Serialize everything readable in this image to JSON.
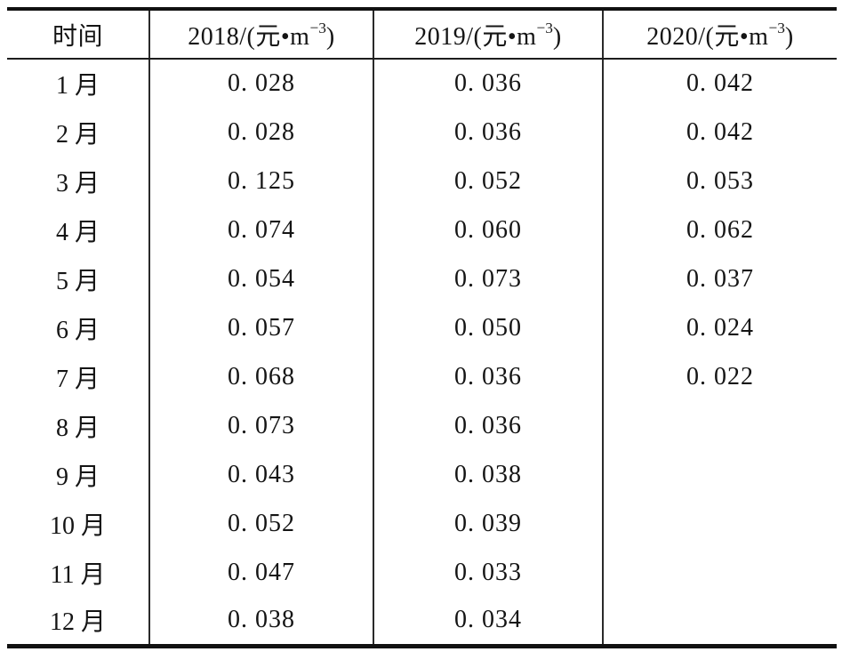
{
  "table": {
    "columns": [
      {
        "label": "时间"
      },
      {
        "prefix": "2018/(元•m",
        "sup": "−3",
        "suffix": ")"
      },
      {
        "prefix": "2019/(元•m",
        "sup": "−3",
        "suffix": ")"
      },
      {
        "prefix": "2020/(元•m",
        "sup": "−3",
        "suffix": ")"
      }
    ],
    "rows": [
      {
        "month": "1 月",
        "y2018": "0. 028",
        "y2019": "0. 036",
        "y2020": "0. 042"
      },
      {
        "month": "2 月",
        "y2018": "0. 028",
        "y2019": "0. 036",
        "y2020": "0. 042"
      },
      {
        "month": "3 月",
        "y2018": "0. 125",
        "y2019": "0. 052",
        "y2020": "0. 053"
      },
      {
        "month": "4 月",
        "y2018": "0. 074",
        "y2019": "0. 060",
        "y2020": "0. 062"
      },
      {
        "month": "5 月",
        "y2018": "0. 054",
        "y2019": "0. 073",
        "y2020": "0. 037"
      },
      {
        "month": "6 月",
        "y2018": "0. 057",
        "y2019": "0. 050",
        "y2020": "0. 024"
      },
      {
        "month": "7 月",
        "y2018": "0. 068",
        "y2019": "0. 036",
        "y2020": "0. 022"
      },
      {
        "month": "8 月",
        "y2018": "0. 073",
        "y2019": "0. 036",
        "y2020": ""
      },
      {
        "month": "9 月",
        "y2018": "0. 043",
        "y2019": "0. 038",
        "y2020": ""
      },
      {
        "month": "10 月",
        "y2018": "0. 052",
        "y2019": "0. 039",
        "y2020": ""
      },
      {
        "month": "11 月",
        "y2018": "0. 047",
        "y2019": "0. 033",
        "y2020": ""
      },
      {
        "month": "12 月",
        "y2018": "0. 038",
        "y2019": "0. 034",
        "y2020": ""
      }
    ]
  },
  "chart_data": {
    "type": "table",
    "title": "",
    "categories": [
      "1月",
      "2月",
      "3月",
      "4月",
      "5月",
      "6月",
      "7月",
      "8月",
      "9月",
      "10月",
      "11月",
      "12月"
    ],
    "column_headers": [
      "时间",
      "2018/(元•m⁻³)",
      "2019/(元•m⁻³)",
      "2020/(元•m⁻³)"
    ],
    "series": [
      {
        "name": "2018",
        "unit": "元•m⁻³",
        "values": [
          0.028,
          0.028,
          0.125,
          0.074,
          0.054,
          0.057,
          0.068,
          0.073,
          0.043,
          0.052,
          0.047,
          0.038
        ]
      },
      {
        "name": "2019",
        "unit": "元•m⁻³",
        "values": [
          0.036,
          0.036,
          0.052,
          0.06,
          0.073,
          0.05,
          0.036,
          0.036,
          0.038,
          0.039,
          0.033,
          0.034
        ]
      },
      {
        "name": "2020",
        "unit": "元•m⁻³",
        "values": [
          0.042,
          0.042,
          0.053,
          0.062,
          0.037,
          0.024,
          0.022,
          null,
          null,
          null,
          null,
          null
        ]
      }
    ],
    "colors": {
      "text": "#141414",
      "background": "#ffffff",
      "rule": "#111111"
    }
  }
}
